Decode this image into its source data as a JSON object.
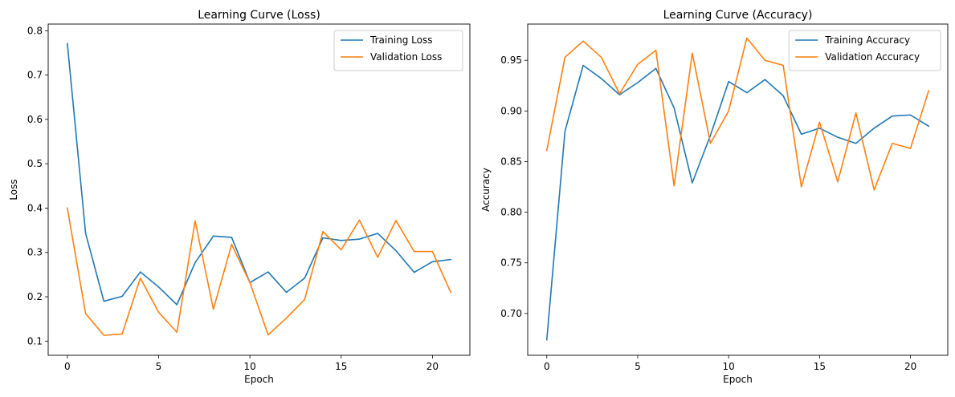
{
  "colors": {
    "training": "#1f77b4",
    "validation": "#ff7f0e",
    "axis": "#000000"
  },
  "chart_data": [
    {
      "type": "line",
      "title": "Learning Curve (Loss)",
      "xlabel": "Epoch",
      "ylabel": "Loss",
      "xlim": [
        -1.05,
        22.05
      ],
      "ylim": [
        0.068,
        0.815
      ],
      "xticks": [
        0,
        5,
        10,
        15,
        20
      ],
      "xtick_labels": [
        "0",
        "5",
        "10",
        "15",
        "20"
      ],
      "yticks": [
        0.1,
        0.2,
        0.3,
        0.4,
        0.5,
        0.6,
        0.7,
        0.8
      ],
      "ytick_labels": [
        "0.1",
        "0.2",
        "0.3",
        "0.4",
        "0.5",
        "0.6",
        "0.7",
        "0.8"
      ],
      "legend_position": "top-right",
      "grid": false,
      "x": [
        0,
        1,
        2,
        3,
        4,
        5,
        6,
        7,
        8,
        9,
        10,
        11,
        12,
        13,
        14,
        15,
        16,
        17,
        18,
        19,
        20,
        21
      ],
      "series": [
        {
          "name": "Training Loss",
          "color": "#1f77b4",
          "values": [
            0.771,
            0.343,
            0.19,
            0.201,
            0.256,
            0.222,
            0.182,
            0.277,
            0.337,
            0.334,
            0.232,
            0.256,
            0.21,
            0.242,
            0.333,
            0.327,
            0.33,
            0.343,
            0.304,
            0.255,
            0.279,
            0.284
          ]
        },
        {
          "name": "Validation Loss",
          "color": "#ff7f0e",
          "values": [
            0.4,
            0.162,
            0.113,
            0.116,
            0.242,
            0.165,
            0.12,
            0.371,
            0.172,
            0.318,
            0.232,
            0.114,
            0.152,
            0.194,
            0.347,
            0.306,
            0.373,
            0.289,
            0.372,
            0.302,
            0.302,
            0.21
          ]
        }
      ]
    },
    {
      "type": "line",
      "title": "Learning Curve (Accuracy)",
      "xlabel": "Epoch",
      "ylabel": "Accuracy",
      "xlim": [
        -1.05,
        22.05
      ],
      "ylim": [
        0.6587,
        0.9858
      ],
      "xticks": [
        0,
        5,
        10,
        15,
        20
      ],
      "xtick_labels": [
        "0",
        "5",
        "10",
        "15",
        "20"
      ],
      "yticks": [
        0.7,
        0.75,
        0.8,
        0.85,
        0.9,
        0.95
      ],
      "ytick_labels": [
        "0.70",
        "0.75",
        "0.80",
        "0.85",
        "0.90",
        "0.95"
      ],
      "legend_position": "top-right",
      "grid": false,
      "x": [
        0,
        1,
        2,
        3,
        4,
        5,
        6,
        7,
        8,
        9,
        10,
        11,
        12,
        13,
        14,
        15,
        16,
        17,
        18,
        19,
        20,
        21
      ],
      "series": [
        {
          "name": "Training Accuracy",
          "color": "#1f77b4",
          "values": [
            0.674,
            0.88,
            0.945,
            0.932,
            0.916,
            0.928,
            0.942,
            0.903,
            0.829,
            0.876,
            0.929,
            0.918,
            0.931,
            0.915,
            0.877,
            0.883,
            0.874,
            0.868,
            0.883,
            0.895,
            0.896,
            0.885
          ]
        },
        {
          "name": "Validation Accuracy",
          "color": "#ff7f0e",
          "values": [
            0.861,
            0.953,
            0.969,
            0.953,
            0.917,
            0.946,
            0.96,
            0.826,
            0.957,
            0.868,
            0.9,
            0.972,
            0.95,
            0.945,
            0.825,
            0.889,
            0.83,
            0.898,
            0.822,
            0.868,
            0.863,
            0.92
          ]
        }
      ]
    }
  ]
}
